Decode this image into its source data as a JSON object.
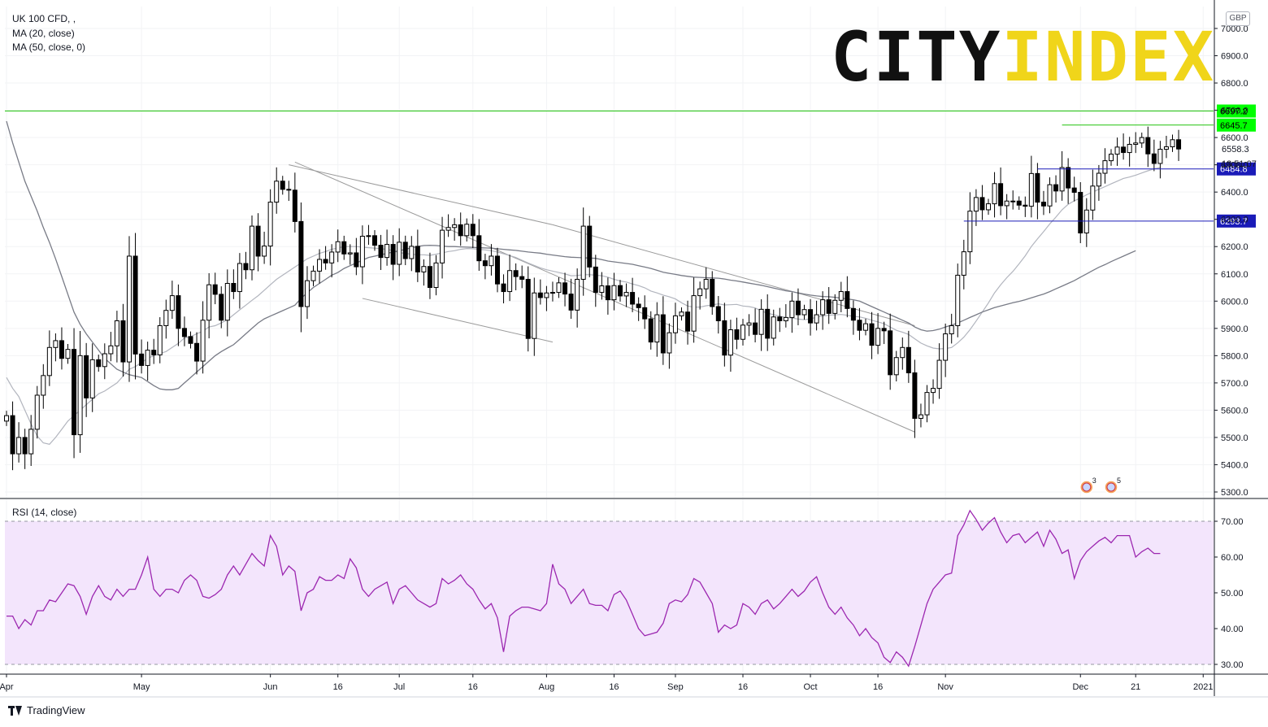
{
  "legend": {
    "symbol": "UK 100 CFD, ,",
    "ma20": "MA (20, close)",
    "ma50": "MA (50, close, 0)",
    "rsi": "RSI (14, close)"
  },
  "currency": "GBP",
  "brand": {
    "part1": "CITY",
    "part2": "INDEX"
  },
  "footer": {
    "platform": "TradingView"
  },
  "colors": {
    "up_candle": "#ffffff",
    "down_candle": "#000000",
    "ma20": "#b2b5be",
    "ma50": "#787b86",
    "rsi_line": "#9c27b0",
    "rsi_band": "#f3e5fc",
    "resistance": "#22c40f",
    "support": "#1a1bb8",
    "channel": "#9a9a9a"
  },
  "chart_data": {
    "type": "candlestick",
    "title": "UK 100 CFD",
    "price_axis": {
      "ylim": [
        5270,
        7060
      ],
      "ticks": [
        5300,
        5400,
        5500,
        5600,
        5700,
        5800,
        5900,
        6000,
        6100,
        6200,
        6300,
        6400,
        6500,
        6600,
        6700,
        6800,
        6900,
        7000
      ],
      "tick_labels": [
        "5300.0",
        "5400.0",
        "5500.0",
        "5600.0",
        "5700.0",
        "5800.0",
        "5900.0",
        "6000.0",
        "6100.0",
        "6200.0",
        "6300.0",
        "6400.0",
        "6500.0",
        "6600.0",
        "6700.0",
        "6800.0",
        "6900.0",
        "7000.0"
      ]
    },
    "time_axis": {
      "labels": [
        "Apr",
        "May",
        "Jun",
        "16",
        "Jul",
        "16",
        "Aug",
        "16",
        "Sep",
        "16",
        "Oct",
        "16",
        "Nov",
        "Dec",
        "21",
        "2021"
      ],
      "label_index": [
        0,
        22,
        43,
        54,
        64,
        76,
        88,
        99,
        109,
        120,
        131,
        142,
        153,
        175,
        184,
        195
      ]
    },
    "series": [
      {
        "name": "UK 100 CFD",
        "style": "candles",
        "values": [
          5580,
          5440,
          5500,
          5440,
          5530,
          5655,
          5727,
          5830,
          5855,
          5790,
          5823,
          5510,
          5800,
          5645,
          5785,
          5760,
          5807,
          5836,
          5928,
          5777,
          6165,
          5806,
          5764,
          5820,
          5803,
          5910,
          5966,
          6020,
          5900,
          5870,
          5845,
          5780,
          5930,
          6060,
          6025,
          5930,
          6065,
          6035,
          6138,
          6115,
          6275,
          6165,
          6202,
          6363,
          6440,
          6410,
          6407,
          6292,
          5980,
          6075,
          6110,
          6153,
          6140,
          6180,
          6218,
          6173,
          6177,
          6126,
          6238,
          6240,
          6205,
          6160,
          6208,
          6135,
          6216,
          6156,
          6201,
          6107,
          6127,
          6050,
          6140,
          6260,
          6270,
          6280,
          6240,
          6282,
          6240,
          6148,
          6130,
          6165,
          6063,
          6035,
          6112,
          6090,
          6080,
          5863,
          6030,
          6013,
          6030,
          6032,
          6067,
          6026,
          5967,
          6080,
          6275,
          6125,
          6032,
          6056,
          6005,
          6057,
          6019,
          6032,
          5989,
          5976,
          5935,
          5850,
          5950,
          5810,
          5884,
          5946,
          5960,
          5890,
          6020,
          6045,
          6080,
          5980,
          5928,
          5802,
          5895,
          5860,
          5912,
          5920,
          5878,
          5970,
          5864,
          5942,
          5928,
          5940,
          6000,
          5950,
          5969,
          5920,
          5950,
          6005,
          5955,
          6003,
          6035,
          5973,
          5930,
          5893,
          5917,
          5838,
          5900,
          5891,
          5730,
          5793,
          5830,
          5737,
          5570,
          5583,
          5665,
          5680,
          5783,
          5880,
          5910,
          6095,
          6181,
          6330,
          6380,
          6335,
          6357,
          6431,
          6350,
          6367,
          6367,
          6352,
          6348,
          6468,
          6363,
          6349,
          6427,
          6404,
          6490,
          6415,
          6399,
          6250,
          6334,
          6422,
          6469,
          6515,
          6539,
          6565,
          6545,
          6575,
          6580,
          6600,
          6540,
          6505,
          6557,
          6566,
          6592,
          6558
        ]
      },
      {
        "name": "MA (20, close)",
        "style": "line",
        "values": [
          5720,
          5680,
          5650,
          5600,
          5550,
          5505,
          5480,
          5475,
          5500,
          5530,
          5560,
          5580,
          5600,
          5620,
          5640,
          5660,
          5670,
          5685,
          5700,
          5725,
          5750,
          5760,
          5775,
          5790,
          5800,
          5808,
          5815,
          5830,
          5845,
          5865,
          5870,
          5880,
          5890,
          5905,
          5910,
          5920,
          5932,
          5950,
          5968,
          5985,
          6003,
          6020,
          6040,
          6060,
          6080,
          6095,
          6110,
          6125,
          6140,
          6155,
          6165,
          6175,
          6182,
          6190,
          6195,
          6200,
          6200,
          6200,
          6198,
          6196,
          6194,
          6192,
          6190,
          6185,
          6178,
          6175,
          6172,
          6170,
          6170,
          6168,
          6172,
          6177,
          6182,
          6185,
          6190,
          6193,
          6192,
          6190,
          6188,
          6185,
          6180,
          6174,
          6167,
          6160,
          6150,
          6140,
          6131,
          6122,
          6115,
          6110,
          6105,
          6100,
          6093,
          6094,
          6097,
          6097,
          6095,
          6093,
          6088,
          6080,
          6074,
          6070,
          6063,
          6057,
          6049,
          6037,
          6030,
          6022,
          6016,
          6008,
          5994,
          5982,
          5978,
          5978,
          5983,
          5986,
          5990,
          5986,
          5987,
          5988,
          5982,
          5980,
          5975,
          5964,
          5956,
          5950,
          5945,
          5940,
          5938,
          5934,
          5932,
          5935,
          5941,
          5945,
          5948,
          5950,
          5951,
          5948,
          5944,
          5942,
          5937,
          5930,
          5924,
          5917,
          5905,
          5893,
          5886,
          5878,
          5862,
          5846,
          5836,
          5828,
          5825,
          5826,
          5830,
          5847,
          5868,
          5895,
          5927,
          5960,
          5993,
          6030,
          6060,
          6086,
          6109,
          6137,
          6166,
          6200,
          6228,
          6255,
          6283,
          6308,
          6335,
          6355,
          6368,
          6378,
          6390,
          6400,
          6410,
          6420,
          6430,
          6440,
          6450,
          6455,
          6462,
          6470,
          6478,
          6485,
          6490
        ]
      },
      {
        "name": "MA (50, close, 0)",
        "style": "line",
        "values": [
          6660,
          6580,
          6510,
          6440,
          6385,
          6330,
          6270,
          6215,
          6155,
          6090,
          6025,
          5960,
          5915,
          5880,
          5850,
          5820,
          5790,
          5770,
          5750,
          5740,
          5730,
          5725,
          5720,
          5705,
          5690,
          5678,
          5675,
          5675,
          5680,
          5700,
          5720,
          5740,
          5760,
          5780,
          5800,
          5815,
          5828,
          5840,
          5860,
          5880,
          5900,
          5920,
          5935,
          5945,
          5955,
          5965,
          5975,
          5985,
          6010,
          6030,
          6050,
          6065,
          6080,
          6095,
          6105,
          6120,
          6130,
          6140,
          6150,
          6160,
          6165,
          6170,
          6175,
          6180,
          6185,
          6190,
          6196,
          6200,
          6204,
          6205,
          6204,
          6202,
          6200,
          6200,
          6199,
          6198,
          6197,
          6196,
          6195,
          6194,
          6192,
          6190,
          6188,
          6186,
          6183,
          6180,
          6178,
          6176,
          6172,
          6169,
          6166,
          6163,
          6161,
          6160,
          6159,
          6158,
          6157,
          6152,
          6147,
          6144,
          6141,
          6138,
          6135,
          6130,
          6125,
          6120,
          6113,
          6106,
          6102,
          6098,
          6094,
          6091,
          6088,
          6087,
          6086,
          6085,
          6084,
          6081,
          6077,
          6074,
          6070,
          6066,
          6062,
          6058,
          6053,
          6048,
          6043,
          6038,
          6035,
          6030,
          6026,
          6022,
          6019,
          6017,
          6016,
          6014,
          6011,
          6008,
          6005,
          6000,
          5990,
          5980,
          5970,
          5960,
          5950,
          5940,
          5930,
          5920,
          5905,
          5895,
          5890,
          5892,
          5897,
          5905,
          5912,
          5920,
          5930,
          5940,
          5950,
          5960,
          5968,
          5976,
          5982,
          5988,
          5994,
          5999,
          6005,
          6012,
          6019,
          6026,
          6035,
          6045,
          6055,
          6065,
          6075,
          6088,
          6100,
          6112,
          6124,
          6134,
          6145,
          6155,
          6165,
          6175,
          6185
        ]
      },
      {
        "name": "RSI (14, close)",
        "style": "line",
        "values": [
          43.5,
          43.5,
          40.0,
          42.5,
          41.0,
          45.0,
          45.0,
          48.0,
          47.5,
          50.0,
          52.5,
          52.0,
          49.0,
          44.0,
          49.0,
          52.0,
          49.0,
          48.0,
          51.0,
          49.0,
          51.0,
          51.0,
          55.0,
          60.0,
          51.0,
          49.0,
          51.0,
          51.0,
          50.0,
          53.5,
          55.0,
          53.5,
          49.0,
          48.5,
          49.5,
          51.0,
          55.0,
          57.5,
          55.0,
          58.0,
          61.0,
          59.0,
          57.5,
          66.0,
          63.0,
          55.0,
          57.5,
          56.0,
          45.0,
          50.0,
          51.0,
          54.5,
          53.5,
          53.5,
          55.0,
          54.0,
          59.5,
          57.0,
          51.0,
          49.0,
          51.0,
          52.0,
          53.0,
          47.0,
          51.0,
          52.0,
          50.0,
          48.0,
          47.0,
          46.0,
          47.0,
          54.0,
          52.5,
          53.5,
          55.0,
          52.5,
          51.0,
          48.0,
          45.5,
          47.0,
          43.0,
          33.5,
          43.5,
          45.0,
          46.0,
          46.0,
          45.5,
          45.0,
          47.0,
          58.0,
          52.5,
          51.0,
          47.0,
          49.0,
          51.0,
          47.0,
          46.5,
          46.5,
          45.0,
          49.5,
          50.5,
          48.0,
          44.0,
          40.0,
          38.0,
          38.5,
          39.0,
          41.5,
          47.0,
          48.0,
          47.5,
          49.5,
          54.0,
          53.0,
          50.0,
          47.0,
          39.0,
          41.0,
          40.0,
          41.0,
          47.0,
          46.0,
          44.0,
          47.0,
          48.0,
          45.5,
          47.0,
          49.0,
          51.0,
          49.0,
          50.5,
          53.0,
          54.5,
          50.0,
          46.0,
          44.0,
          46.0,
          43.0,
          41.0,
          38.0,
          40.0,
          37.5,
          36.0,
          32.0,
          30.5,
          33.5,
          32.0,
          29.5,
          35.0,
          41.0,
          47.0,
          51.0,
          53.0,
          55.0,
          55.5,
          66.0,
          69.0,
          73.0,
          70.5,
          67.5,
          69.5,
          71.0,
          67.0,
          64.0,
          66.0,
          66.5,
          64.0,
          65.5,
          67.0,
          63.0,
          67.5,
          65.0,
          61.0,
          62.0,
          54.0,
          59.0,
          61.5,
          63.0,
          64.5,
          65.5,
          64.0,
          66.0,
          66.0,
          66.0,
          60.0,
          61.5,
          62.5,
          61.0,
          61.0
        ]
      }
    ],
    "horizontal_levels": [
      {
        "label": "6697.2",
        "value": 6697.2,
        "color": "#22c40f"
      },
      {
        "label": "6645.7",
        "value": 6645.7,
        "color": "#22c40f"
      },
      {
        "label": "6484.8",
        "value": 6484.8,
        "color": "#1a1bb8"
      },
      {
        "label": "6293.7",
        "value": 6293.7,
        "color": "#1a1bb8"
      }
    ],
    "last_price_label": "6558.3",
    "countdown_label": "13:51:07",
    "rsi_axis": {
      "ylim": [
        28,
        78
      ],
      "ticks": [
        30,
        40,
        50,
        60,
        70
      ],
      "tick_labels": [
        "30.00",
        "40.00",
        "50.00",
        "60.00",
        "70.00"
      ],
      "band": [
        30,
        70
      ]
    },
    "event_badges": [
      "3",
      "5"
    ]
  }
}
